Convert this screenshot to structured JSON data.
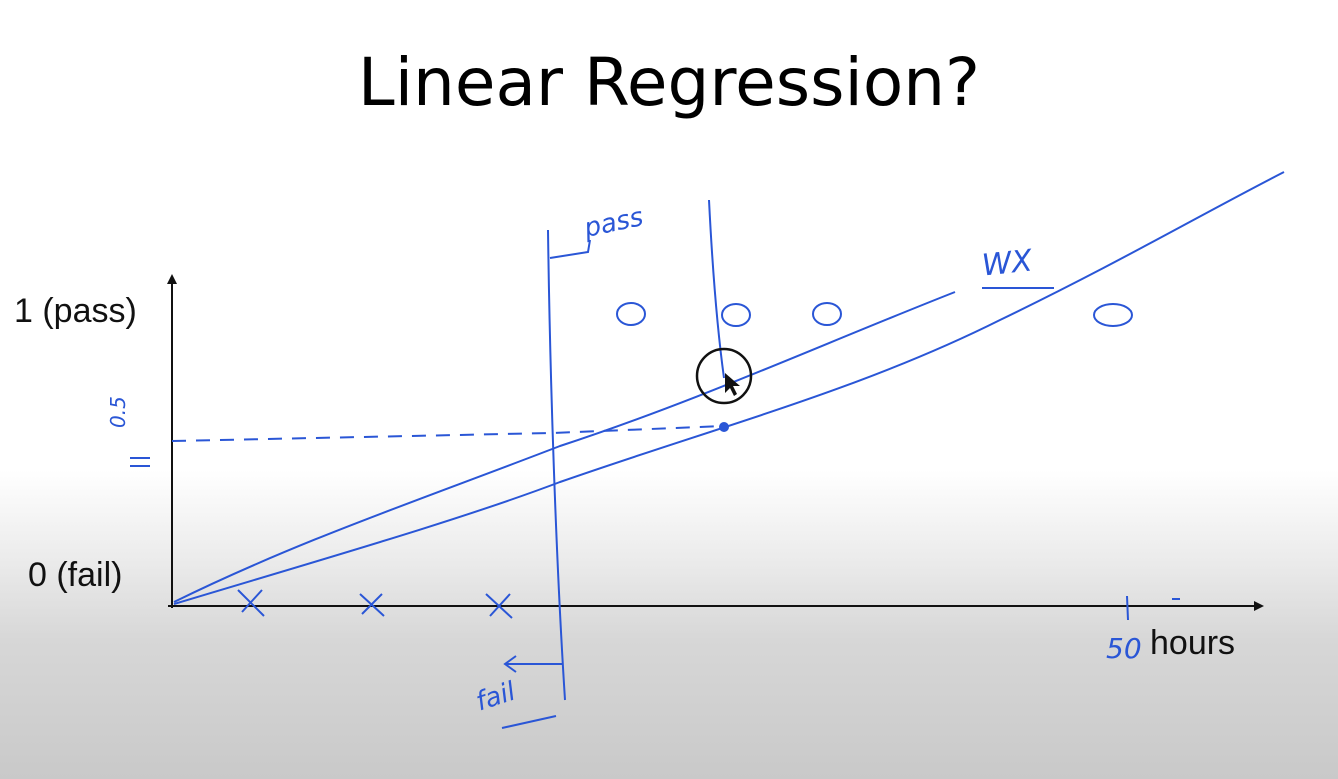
{
  "title": "Linear Regression?",
  "y_label_top": "1 (pass)",
  "y_label_bottom": "0 (fail)",
  "x_label": "hours",
  "annotations": {
    "pass": "pass",
    "fail": "fail",
    "wx": "WX",
    "half": "0.5",
    "fifty": "50"
  },
  "markers": {
    "fail_symbol": "X",
    "pass_symbol": "O"
  },
  "colors": {
    "ink": "#2a56d6",
    "axis": "#111111"
  }
}
